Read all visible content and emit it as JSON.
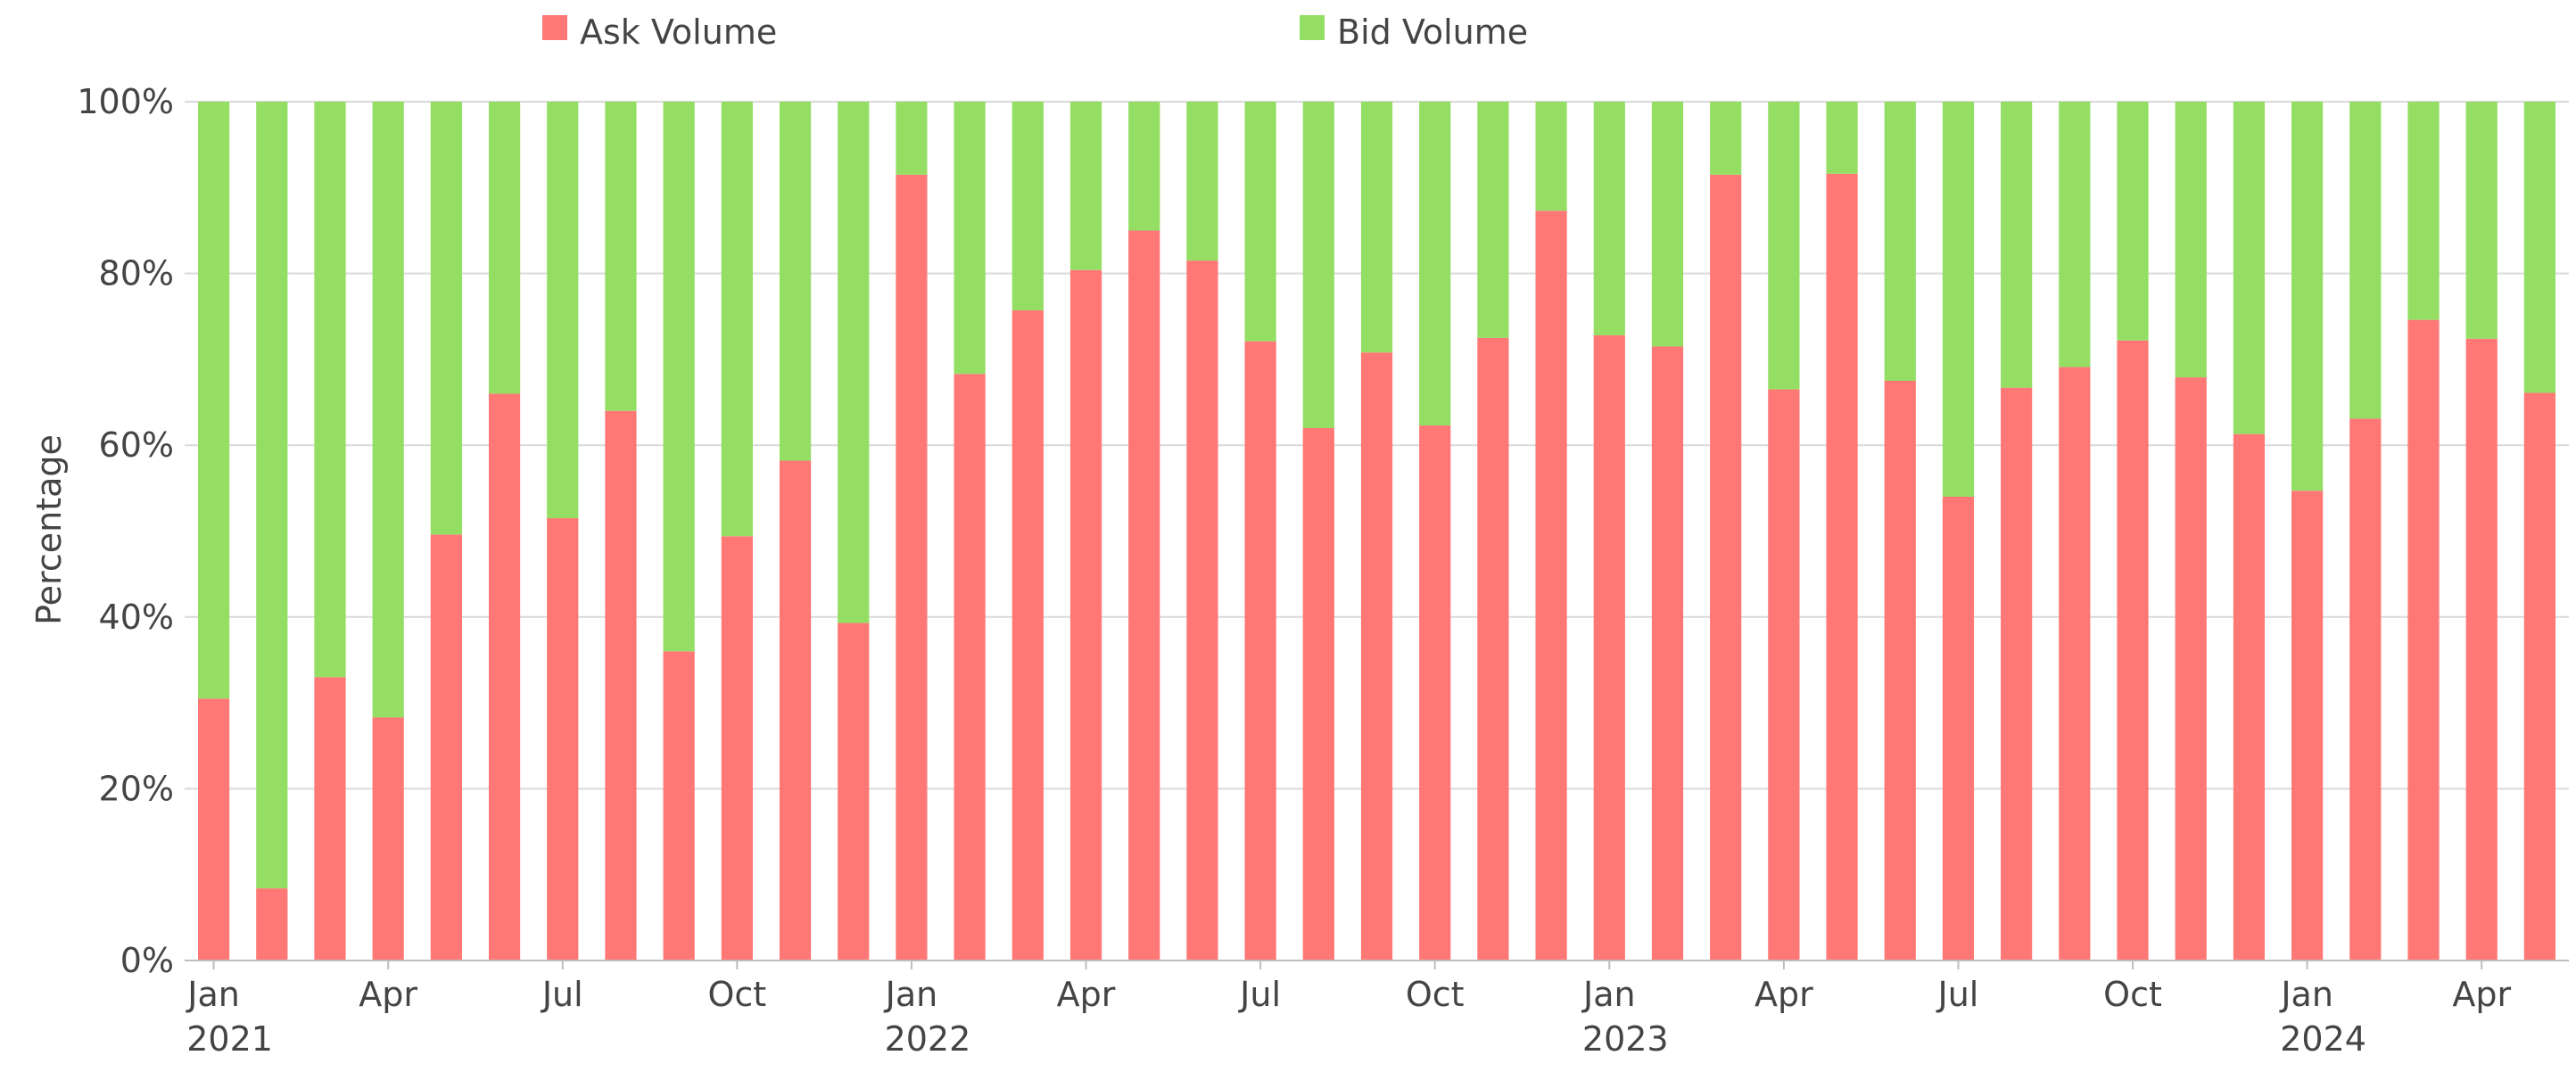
{
  "colors": {
    "ask": "#ff7876",
    "bid": "#94de64"
  },
  "chart_data": {
    "type": "bar",
    "stacked": true,
    "percent": true,
    "title": "",
    "xlabel": "",
    "ylabel": "Percentage",
    "ylim": [
      0,
      100
    ],
    "grid": true,
    "legend_position": "top",
    "y_ticks": [
      "0%",
      "20%",
      "40%",
      "60%",
      "80%",
      "100%"
    ],
    "x_ticks": [
      {
        "index": 0,
        "label": "Jan",
        "year": "2021"
      },
      {
        "index": 3,
        "label": "Apr",
        "year": ""
      },
      {
        "index": 6,
        "label": "Jul",
        "year": ""
      },
      {
        "index": 9,
        "label": "Oct",
        "year": ""
      },
      {
        "index": 12,
        "label": "Jan",
        "year": "2022"
      },
      {
        "index": 15,
        "label": "Apr",
        "year": ""
      },
      {
        "index": 18,
        "label": "Jul",
        "year": ""
      },
      {
        "index": 21,
        "label": "Oct",
        "year": ""
      },
      {
        "index": 24,
        "label": "Jan",
        "year": "2023"
      },
      {
        "index": 27,
        "label": "Apr",
        "year": ""
      },
      {
        "index": 30,
        "label": "Jul",
        "year": ""
      },
      {
        "index": 33,
        "label": "Oct",
        "year": ""
      },
      {
        "index": 36,
        "label": "Jan",
        "year": "2024"
      },
      {
        "index": 39,
        "label": "Apr",
        "year": ""
      }
    ],
    "categories": [
      "2021-01",
      "2021-02",
      "2021-03",
      "2021-04",
      "2021-05",
      "2021-06",
      "2021-07",
      "2021-08",
      "2021-09",
      "2021-10",
      "2021-11",
      "2021-12",
      "2022-01",
      "2022-02",
      "2022-03",
      "2022-04",
      "2022-05",
      "2022-06",
      "2022-07",
      "2022-08",
      "2022-09",
      "2022-10",
      "2022-11",
      "2022-12",
      "2023-01",
      "2023-02",
      "2023-03",
      "2023-04",
      "2023-05",
      "2023-06",
      "2023-07",
      "2023-08",
      "2023-09",
      "2023-10",
      "2023-11",
      "2023-12",
      "2024-01",
      "2024-02",
      "2024-03",
      "2024-04",
      "2024-05"
    ],
    "series": [
      {
        "name": "Ask Volume",
        "values": [
          30.5,
          8.4,
          33.0,
          28.3,
          49.6,
          66.0,
          51.5,
          64.0,
          36.0,
          49.4,
          58.2,
          39.3,
          91.5,
          68.3,
          75.7,
          80.4,
          85.0,
          81.5,
          72.1,
          62.0,
          70.8,
          62.3,
          72.5,
          87.3,
          72.8,
          71.5,
          91.5,
          66.5,
          91.6,
          67.5,
          54.0,
          66.7,
          69.1,
          72.2,
          67.9,
          61.3,
          54.7,
          63.1,
          74.6,
          72.4,
          66.1
        ]
      },
      {
        "name": "Bid Volume",
        "values": [
          69.5,
          91.6,
          67.0,
          71.7,
          50.4,
          34.0,
          48.5,
          36.0,
          64.0,
          50.6,
          41.8,
          60.7,
          8.5,
          31.7,
          24.3,
          19.6,
          15.0,
          18.5,
          27.9,
          38.0,
          29.2,
          37.7,
          27.5,
          12.7,
          27.2,
          28.5,
          8.5,
          33.5,
          8.4,
          32.5,
          46.0,
          33.3,
          30.9,
          27.8,
          32.1,
          38.7,
          45.3,
          36.9,
          25.4,
          27.6,
          33.9
        ]
      }
    ]
  }
}
